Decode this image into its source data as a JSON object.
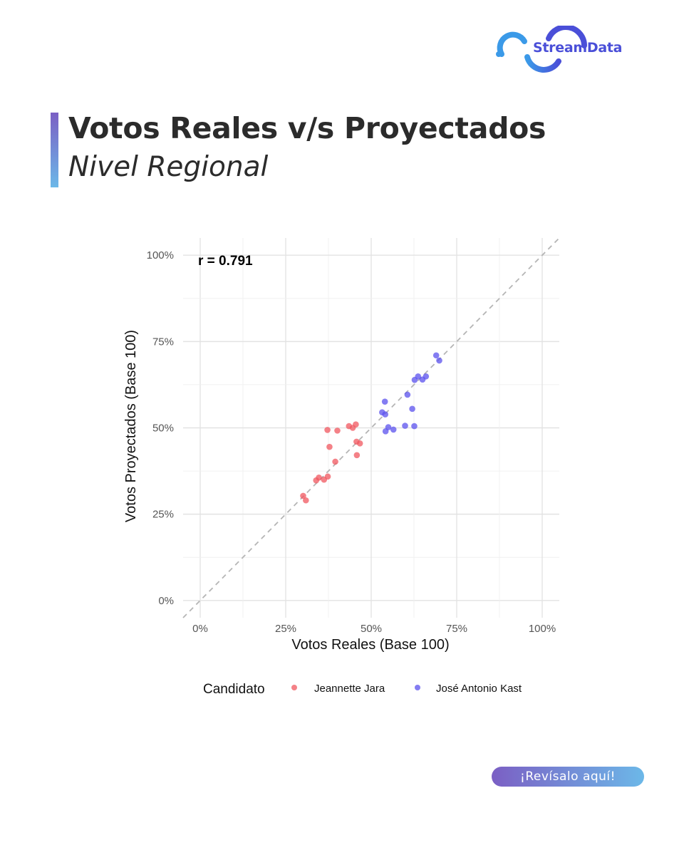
{
  "brand": {
    "name": "StreamData",
    "accent": "#4a4fd8"
  },
  "header": {
    "title": "Votos Reales v/s Proyectados",
    "subtitle": "Nivel Regional",
    "bar_gradient": [
      "#7b5fc4",
      "#6cb8e8"
    ]
  },
  "cta": {
    "label": "¡Revísalo aquí!"
  },
  "chart_data": {
    "type": "scatter",
    "xlabel": "Votos Reales (Base 100)",
    "ylabel": "Votos Proyectados (Base 100)",
    "xlim": [
      -5,
      105
    ],
    "ylim": [
      -5,
      105
    ],
    "x_ticks": [
      "0%",
      "25%",
      "50%",
      "75%",
      "100%"
    ],
    "y_ticks": [
      "0%",
      "25%",
      "50%",
      "75%",
      "100%"
    ],
    "annotation": "r = 0.791",
    "reference_line": "y = x (dashed)",
    "grid": true,
    "legend": {
      "title": "Candidato",
      "position": "bottom"
    },
    "series": [
      {
        "name": "Jeannette Jara",
        "color": "#f0575f",
        "points": [
          [
            30.1,
            30.3
          ],
          [
            30.9,
            29.0
          ],
          [
            33.9,
            34.8
          ],
          [
            34.7,
            35.6
          ],
          [
            36.2,
            35.0
          ],
          [
            37.2,
            49.4
          ],
          [
            37.3,
            35.9
          ],
          [
            37.8,
            44.5
          ],
          [
            39.5,
            40.2
          ],
          [
            40.1,
            49.2
          ],
          [
            43.5,
            50.5
          ],
          [
            44.6,
            50.0
          ],
          [
            45.5,
            51.0
          ],
          [
            45.7,
            46.0
          ],
          [
            45.8,
            42.1
          ],
          [
            46.7,
            45.5
          ]
        ]
      },
      {
        "name": "José Antonio Kast",
        "color": "#5b52ee",
        "points": [
          [
            53.2,
            54.5
          ],
          [
            54.0,
            57.6
          ],
          [
            54.1,
            53.9
          ],
          [
            54.2,
            49.0
          ],
          [
            55.0,
            50.2
          ],
          [
            56.5,
            49.5
          ],
          [
            59.9,
            50.6
          ],
          [
            60.6,
            59.6
          ],
          [
            62.0,
            55.5
          ],
          [
            62.6,
            50.5
          ],
          [
            62.7,
            63.9
          ],
          [
            63.7,
            64.9
          ],
          [
            65.0,
            64.0
          ],
          [
            66.0,
            64.9
          ],
          [
            69.0,
            71.0
          ],
          [
            69.9,
            69.5
          ]
        ]
      }
    ]
  }
}
